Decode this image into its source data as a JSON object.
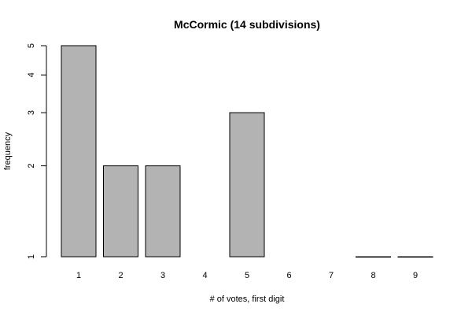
{
  "chart_data": {
    "type": "bar",
    "title": "McCormic (14 subdivisions)",
    "xlabel": "# of votes, first digit",
    "ylabel": "frequency",
    "categories": [
      "1",
      "2",
      "3",
      "4",
      "5",
      "6",
      "7",
      "8",
      "9"
    ],
    "values": [
      5,
      2,
      2,
      0,
      3,
      0,
      0,
      1,
      1
    ],
    "y_scale": "log",
    "ylim": [
      1,
      5
    ],
    "y_ticks": [
      1,
      2,
      3,
      4,
      5
    ],
    "grid": false,
    "colors": {
      "bar_fill": "#b3b3b3",
      "bar_stroke": "#000000"
    }
  }
}
